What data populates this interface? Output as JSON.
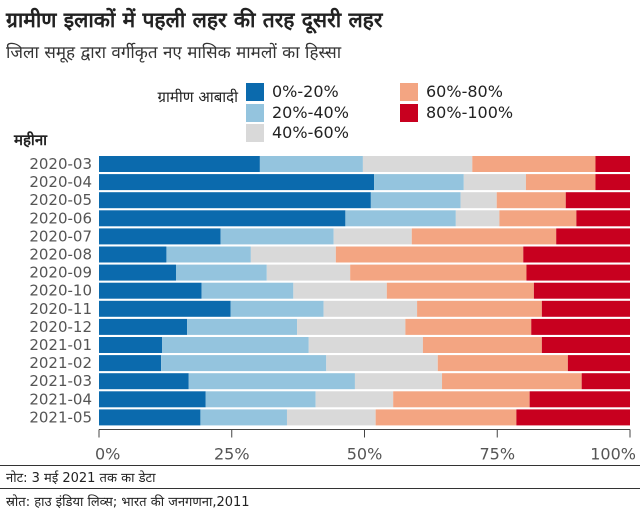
{
  "title": "ग्रामीण इलाकों में पहली लहर की तरह दूसरी लहर",
  "subtitle": "जिला समूह द्वारा वर्गीकृत नए मासिक मामलों का हिस्सा",
  "note": "नोट: 3 मई 2021 तक का डेटा",
  "source": "स्रोत: हाउ इंडिया लिव्स; भारत की जनगणना,2011",
  "chart_data": {
    "type": "bar",
    "orientation": "horizontal",
    "stacked": true,
    "ylabel": "महीना",
    "legend_title": "ग्रामीण आबादी",
    "legend_placement": "top",
    "xlim": [
      0,
      100
    ],
    "x_ticks": [
      "0%",
      "25%",
      "50%",
      "75%",
      "100%"
    ],
    "grid": false,
    "categories": [
      "2020-03",
      "2020-04",
      "2020-05",
      "2020-06",
      "2020-07",
      "2020-08",
      "2020-09",
      "2020-10",
      "2020-11",
      "2020-12",
      "2021-01",
      "2021-02",
      "2021-03",
      "2021-04",
      "2021-05"
    ],
    "series": [
      {
        "name": "0%-20%",
        "color": "#0b6aad",
        "values": [
          30.3,
          51.8,
          51.2,
          46.4,
          22.9,
          12.7,
          14.5,
          19.3,
          24.8,
          16.6,
          11.9,
          11.7,
          16.9,
          20.1,
          19.1
        ]
      },
      {
        "name": "20%-40%",
        "color": "#94c4de",
        "values": [
          19.4,
          16.9,
          16.9,
          20.8,
          21.3,
          15.9,
          17.1,
          17.3,
          17.5,
          20.7,
          27.6,
          31.1,
          31.3,
          20.7,
          16.3
        ]
      },
      {
        "name": "40%-60%",
        "color": "#d9d9d9",
        "values": [
          20.6,
          11.7,
          6.8,
          8.2,
          14.7,
          16.0,
          15.7,
          17.6,
          17.6,
          20.4,
          21.5,
          21.0,
          16.4,
          14.6,
          16.7
        ]
      },
      {
        "name": "60%-80%",
        "color": "#f3a582",
        "values": [
          23.2,
          13.1,
          13.0,
          14.5,
          27.2,
          35.3,
          33.2,
          27.7,
          23.5,
          23.7,
          22.4,
          24.5,
          26.3,
          25.7,
          26.5
        ]
      },
      {
        "name": "80%-100%",
        "color": "#c8001f",
        "values": [
          6.5,
          6.5,
          12.1,
          10.1,
          13.9,
          20.1,
          19.5,
          18.1,
          16.6,
          18.6,
          16.6,
          11.7,
          9.1,
          18.9,
          21.4
        ]
      }
    ]
  }
}
